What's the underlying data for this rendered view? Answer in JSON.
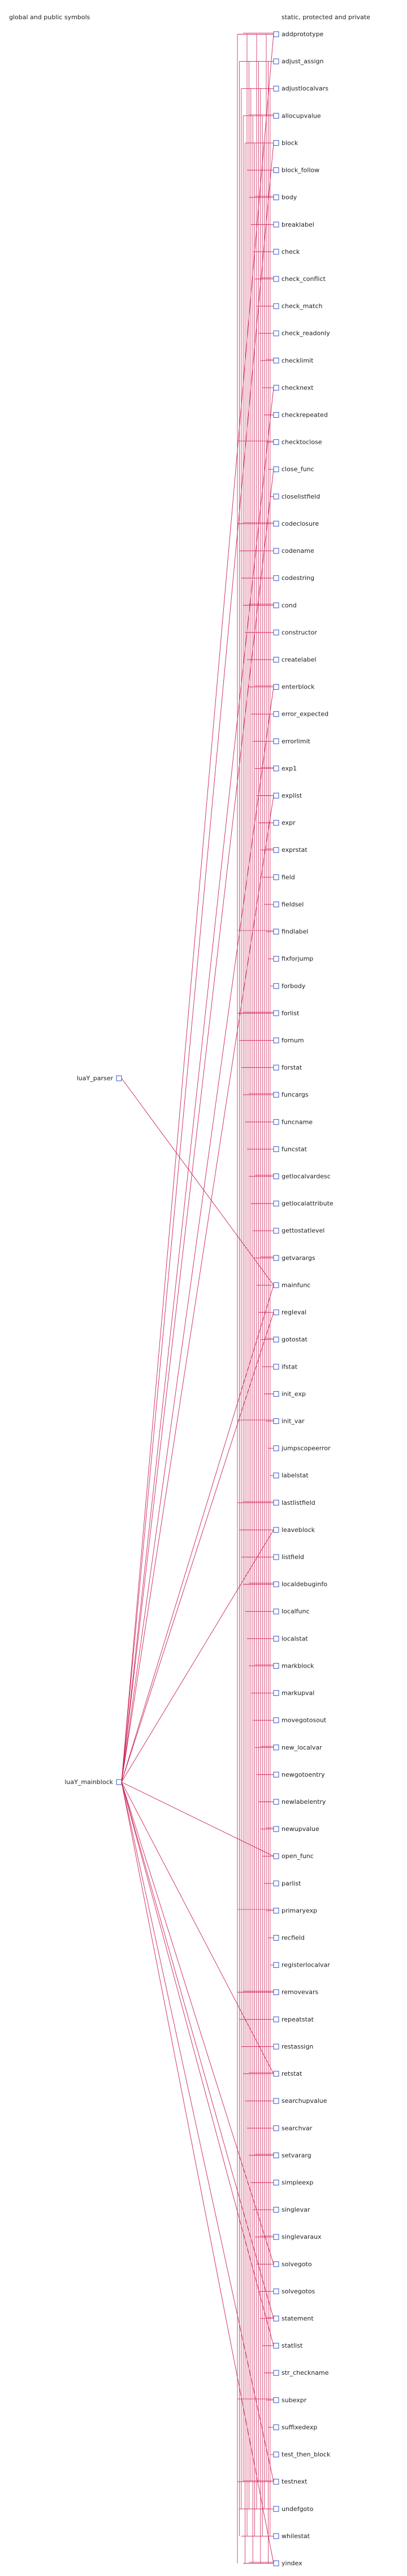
{
  "headers": {
    "global": "global and public symbols",
    "static": "static, protected and private"
  },
  "colors": {
    "edge": "#cc2255",
    "node_box": "#3355cc",
    "text": "#222222"
  },
  "global_nodes": [
    {
      "id": "parser",
      "label": "luaY_parser"
    },
    {
      "id": "mainblock",
      "label": "luaY_mainblock"
    }
  ],
  "static_nodes": [
    "addprototype",
    "adjust_assign",
    "adjustlocalvars",
    "allocupvalue",
    "block",
    "block_follow",
    "body",
    "breaklabel",
    "check",
    "check_conflict",
    "check_match",
    "check_readonly",
    "checklimit",
    "checknext",
    "checkrepeated",
    "checktoclose",
    "close_func",
    "closelistfield",
    "codeclosure",
    "codename",
    "codestring",
    "cond",
    "constructor",
    "createlabel",
    "enterblock",
    "error_expected",
    "errorlimit",
    "exp1",
    "explist",
    "expr",
    "exprstat",
    "field",
    "fieldsel",
    "findlabel",
    "fixforjump",
    "forbody",
    "forlist",
    "fornum",
    "forstat",
    "funcargs",
    "funcname",
    "funcstat",
    "getlocalvardesc",
    "getlocalattribute",
    "gettostatlevel",
    "getvarargs",
    "mainfunc",
    "regleval",
    "gotostat",
    "ifstat",
    "init_exp",
    "init_var",
    "jumpscopeerror",
    "labelstat",
    "lastlistfield",
    "leaveblock",
    "listfield",
    "localdebuginfo",
    "localfunc",
    "localstat",
    "markblock",
    "markupval",
    "movegotosout",
    "new_localvar",
    "newgotoentry",
    "newlabelentry",
    "newupvalue",
    "open_func",
    "parlist",
    "primaryexp",
    "recfield",
    "registerlocalvar",
    "removevars",
    "repeatstat",
    "restassign",
    "retstat",
    "searchupvalue",
    "searchvar",
    "setvararg",
    "simpleexp",
    "singlevar",
    "singlevaraux",
    "solvegoto",
    "solvegotos",
    "statement",
    "statlist",
    "str_checkname",
    "subexpr",
    "suffixedexp",
    "test_then_block",
    "testnext",
    "undefgoto",
    "whilestat",
    "yindex"
  ]
}
